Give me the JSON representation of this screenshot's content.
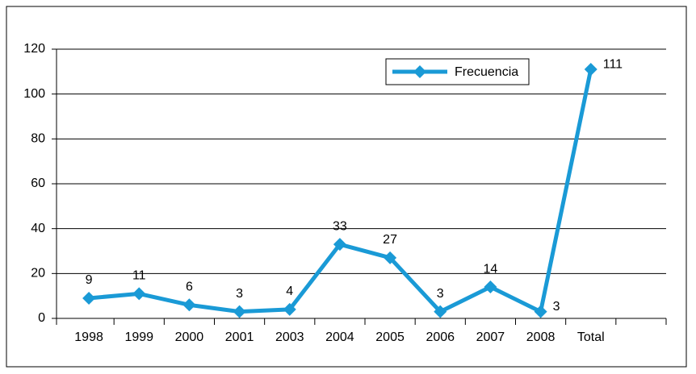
{
  "chart_data": {
    "type": "line",
    "categories": [
      "1998",
      "1999",
      "2000",
      "2001",
      "2003",
      "2004",
      "2005",
      "2006",
      "2007",
      "2008",
      "Total",
      null
    ],
    "series": [
      {
        "name": "Frecuencia",
        "color": "#1a9ad6",
        "values": [
          9,
          11,
          6,
          3,
          4,
          33,
          27,
          3,
          14,
          3,
          111,
          null
        ]
      }
    ],
    "ylim": [
      0,
      120
    ],
    "yticks": [
      0,
      20,
      40,
      60,
      80,
      100,
      120
    ],
    "grid": true,
    "legend": "top-right"
  }
}
